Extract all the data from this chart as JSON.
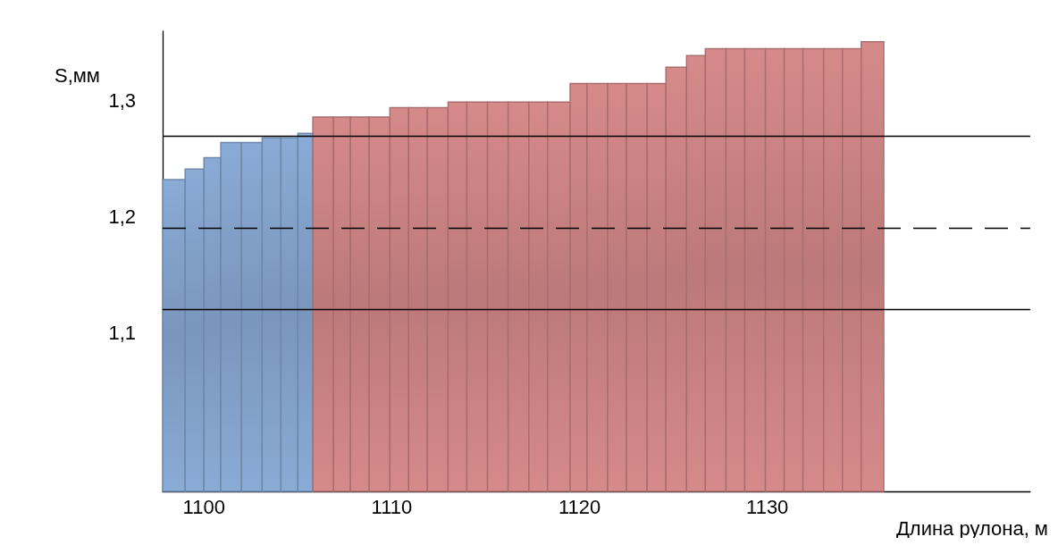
{
  "chart_data": {
    "type": "histogram",
    "xlabel": "Длина рулона, м",
    "ylabel": "S,мм",
    "bins": [
      1097.8,
      1099.0,
      1100.0,
      1100.9,
      1102.0,
      1103.1,
      1104.1,
      1105.0,
      1105.8,
      1106.9,
      1107.8,
      1108.8,
      1109.9,
      1110.9,
      1111.9,
      1113.0,
      1114.0,
      1115.1,
      1116.2,
      1117.3,
      1118.3,
      1119.5,
      1120.4,
      1121.5,
      1122.5,
      1123.6,
      1124.6,
      1125.7,
      1126.7,
      1127.8,
      1128.8,
      1129.9,
      1130.9,
      1131.9,
      1133.0,
      1134.0,
      1135.0,
      1136.2
    ],
    "values": [
      1.232,
      1.241,
      1.251,
      1.264,
      1.264,
      1.268,
      1.268,
      1.272,
      1.286,
      1.286,
      1.286,
      1.286,
      1.294,
      1.294,
      1.294,
      1.299,
      1.299,
      1.299,
      1.299,
      1.299,
      1.299,
      1.315,
      1.315,
      1.315,
      1.315,
      1.315,
      1.329,
      1.339,
      1.345,
      1.345,
      1.345,
      1.345,
      1.345,
      1.345,
      1.345,
      1.345,
      1.351
    ],
    "colors": [
      "#8aabd6",
      "#8aabd6",
      "#8aabd6",
      "#8aabd6",
      "#8aabd6",
      "#8aabd6",
      "#8aabd6",
      "#8aabd6",
      "#d68a8a",
      "#d68a8a",
      "#d68a8a",
      "#d68a8a",
      "#d68a8a",
      "#d68a8a",
      "#d68a8a",
      "#d68a8a",
      "#d68a8a",
      "#d68a8a",
      "#d68a8a",
      "#d68a8a",
      "#d68a8a",
      "#d68a8a",
      "#d68a8a",
      "#d68a8a",
      "#d68a8a",
      "#d68a8a",
      "#d68a8a",
      "#d68a8a",
      "#d68a8a",
      "#d68a8a",
      "#d68a8a",
      "#d68a8a",
      "#d68a8a",
      "#d68a8a",
      "#d68a8a",
      "#d68a8a",
      "#d68a8a"
    ],
    "xlim": [
      1097.8,
      1144
    ],
    "xticks": [
      1100,
      1110,
      1120,
      1130
    ],
    "ylim": [
      0.963,
      1.36
    ],
    "yticks": [
      {
        "value": 1.1,
        "label": "1,1"
      },
      {
        "value": 1.2,
        "label": "1,2"
      },
      {
        "value": 1.3,
        "label": "1,3"
      }
    ],
    "ref_lines": [
      {
        "axis": "y",
        "value": 1.27,
        "color": "#000000",
        "line_style": "solid"
      },
      {
        "axis": "y",
        "value": 1.191,
        "color": "#000000",
        "line_style": "dashed"
      },
      {
        "axis": "y",
        "value": 1.12,
        "color": "#000000",
        "line_style": "solid"
      }
    ],
    "grid": false
  }
}
